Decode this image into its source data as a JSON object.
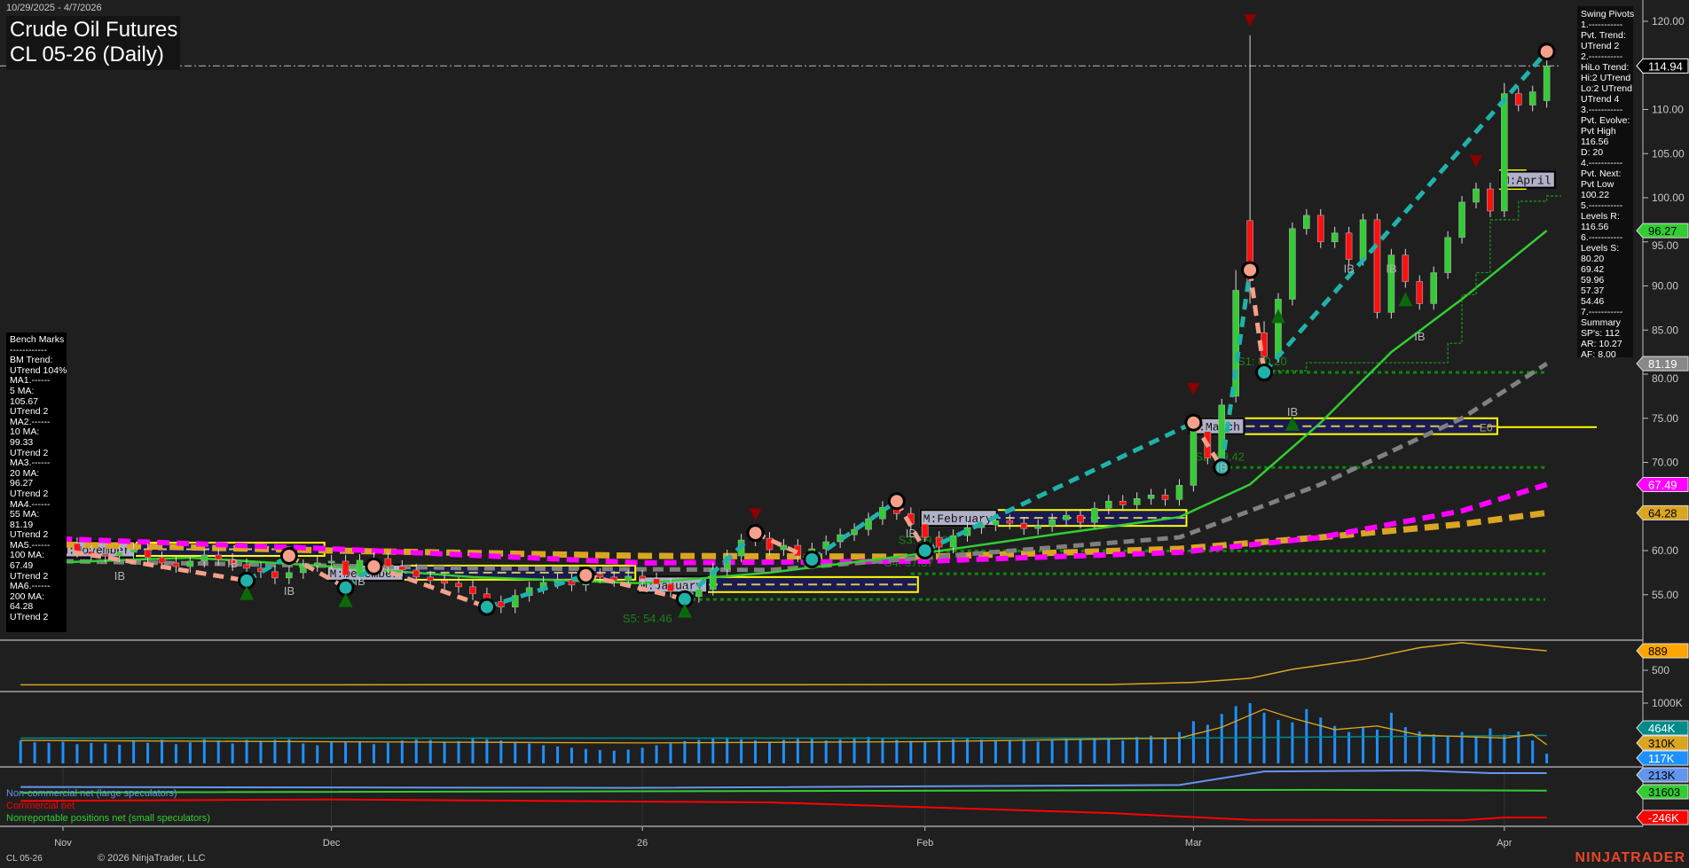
{
  "header": {
    "date_range": "10/29/2025 - 4/7/2026",
    "title_line1": "Crude Oil Futures",
    "title_line2": "CL 05-26 (Daily)"
  },
  "footer": {
    "instrument": "CL 05-26",
    "copyright": "© 2026 NinjaTrader, LLC",
    "logo": "NINJATRADER"
  },
  "swing_pivots": [
    "Swing Pivots",
    "1.-----------",
    "Pvt. Trend:",
    "UTrend 2",
    "2.-----------",
    "HiLo Trend:",
    "Hi:2 UTrend",
    "Lo:2 UTrend",
    "UTrend 4",
    "3.-----------",
    "Pvt. Evolve:",
    "Pvt High",
    "116.56",
    "D: 20",
    "4.-----------",
    "Pvt. Next:",
    "Pvt Low",
    "100.22",
    "5.-----------",
    "Levels R:",
    "116.56",
    "6.-----------",
    "Levels S:",
    "80.20",
    "69.42",
    "59.96",
    "57.37",
    "54.46",
    "7.-----------",
    "Summary",
    "SP's: 112",
    "AR: 10.27",
    "AF: 8.00"
  ],
  "bench_marks": [
    "Bench Marks",
    "------------",
    "BM Trend:",
    "UTrend 104%",
    "MA1.------",
    "5 MA:",
    "105.67",
    "UTrend 2",
    "MA2.------",
    "10 MA:",
    "99.33",
    "UTrend 2",
    "MA3.------",
    "20 MA:",
    "96.27",
    "UTrend 2",
    "MA4.------",
    "55 MA:",
    "81.19",
    "UTrend 2",
    "MA5.------",
    "100 MA:",
    "67.49",
    "UTrend 2",
    "MA6.------",
    "200 MA:",
    "64.28",
    "UTrend 2"
  ],
  "cot_legend": [
    {
      "label": "Non-commercial net (large speculators)",
      "color": "#6495ed"
    },
    {
      "label": "Commercial net",
      "color": "#ff0000"
    },
    {
      "label": "Nonreportable positions net (small speculators)",
      "color": "#32cd32"
    }
  ],
  "chart_data": {
    "type": "candlestick",
    "start_date": "2025-10-29",
    "end_date": "2026-04-07",
    "x_tick_labels": [
      [
        "2025-11-03",
        "Nov"
      ],
      [
        "2025-12-01",
        "Dec"
      ],
      [
        "2026-01-02",
        "26"
      ],
      [
        "2026-02-02",
        "Feb"
      ],
      [
        "2026-03-02",
        "Mar"
      ],
      [
        "2026-04-01",
        "Apr"
      ]
    ],
    "price_axis": {
      "ylim": [
        50,
        122
      ],
      "ticks": [
        55,
        60,
        70,
        75,
        80,
        85,
        90,
        95,
        100,
        105,
        110,
        120
      ]
    },
    "closes": [
      60.2,
      60.5,
      60.9,
      60.8,
      59.9,
      59.6,
      59.4,
      59.8,
      60.1,
      59.2,
      58.6,
      58.2,
      58.8,
      59.5,
      59.0,
      58.4,
      58.0,
      57.6,
      56.9,
      57.5,
      58.3,
      58.6,
      58.8,
      57.2,
      58.9,
      59.1,
      58.2,
      57.8,
      57.0,
      56.6,
      56.3,
      55.9,
      55.1,
      54.2,
      53.6,
      54.9,
      55.8,
      56.4,
      56.7,
      56.1,
      57.3,
      57.0,
      56.6,
      57.1,
      56.8,
      56.2,
      55.4,
      54.8,
      55.6,
      57.9,
      59.4,
      61.2,
      61.4,
      60.1,
      60.6,
      59.4,
      60.2,
      61.0,
      61.8,
      62.4,
      63.6,
      64.9,
      64.2,
      63.0,
      61.5,
      60.4,
      61.7,
      62.6,
      62.9,
      63.4,
      63.1,
      62.5,
      62.8,
      63.5,
      64.0,
      63.2,
      64.8,
      65.6,
      65.2,
      65.9,
      66.3,
      65.8,
      67.4,
      73.5,
      70.5,
      76.5,
      89.5,
      90.6,
      82.0,
      88.5,
      96.5,
      98.0,
      95.0,
      96.0,
      93.0,
      97.5,
      87.0,
      93.5,
      90.5,
      88.0,
      91.5,
      95.5,
      99.5,
      101.0,
      98.5,
      111.8,
      110.5,
      112.0,
      114.94
    ],
    "bar_overrides": {
      "2026-03-06": {
        "o": 97.4,
        "h": 118.4,
        "l": 88.0,
        "c": 90.6
      },
      "2026-03-09": {
        "o": 84.7,
        "h": 86.0,
        "l": 80.2,
        "c": 82.0
      },
      "2026-03-05": {
        "o": 77.5,
        "h": 91.8,
        "l": 76.8,
        "c": 89.5
      },
      "2026-04-01": {
        "o": 98.5,
        "h": 113.0,
        "l": 97.8,
        "c": 111.8
      },
      "2026-04-07": {
        "o": 111.0,
        "h": 116.56,
        "l": 110.2,
        "c": 114.94
      }
    },
    "last_price": {
      "value": 114.94,
      "label": "114.94"
    },
    "moving_averages": [
      {
        "name": "20 MA",
        "label": "96.27",
        "color": "#32cd32",
        "style": "solid",
        "points": [
          [
            "2025-10-29",
            58.5
          ],
          [
            "2025-11-14",
            59.2
          ],
          [
            "2025-12-01",
            58.2
          ],
          [
            "2025-12-15",
            57.0
          ],
          [
            "2026-01-02",
            56.3
          ],
          [
            "2026-01-15",
            57.5
          ],
          [
            "2026-01-30",
            59.5
          ],
          [
            "2026-02-13",
            61.8
          ],
          [
            "2026-02-27",
            63.8
          ],
          [
            "2026-03-06",
            67.5
          ],
          [
            "2026-03-13",
            74.5
          ],
          [
            "2026-03-20",
            82.5
          ],
          [
            "2026-03-27",
            88.5
          ],
          [
            "2026-04-07",
            96.27
          ]
        ]
      },
      {
        "name": "55 MA",
        "label": "81.19",
        "color": "#808080",
        "style": "dashed",
        "points": [
          [
            "2025-11-03",
            58.8
          ],
          [
            "2025-12-15",
            58.0
          ],
          [
            "2026-01-15",
            57.8
          ],
          [
            "2026-02-02",
            59.2
          ],
          [
            "2026-02-27",
            61.5
          ],
          [
            "2026-03-13",
            67.5
          ],
          [
            "2026-03-27",
            75.0
          ],
          [
            "2026-04-07",
            81.19
          ]
        ]
      },
      {
        "name": "100 MA",
        "label": "67.49",
        "color": "#ff00ff",
        "style": "dashed",
        "points": [
          [
            "2025-10-29",
            61.5
          ],
          [
            "2025-12-01",
            60.2
          ],
          [
            "2026-01-02",
            58.6
          ],
          [
            "2026-02-02",
            58.8
          ],
          [
            "2026-02-27",
            59.8
          ],
          [
            "2026-03-13",
            61.5
          ],
          [
            "2026-03-27",
            64.5
          ],
          [
            "2026-04-07",
            67.49
          ]
        ]
      },
      {
        "name": "200 MA",
        "label": "64.28",
        "color": "#daa520",
        "style": "dashed",
        "points": [
          [
            "2025-10-29",
            60.8
          ],
          [
            "2025-12-01",
            60.0
          ],
          [
            "2026-01-02",
            59.4
          ],
          [
            "2026-02-02",
            59.3
          ],
          [
            "2026-02-27",
            60.2
          ],
          [
            "2026-03-13",
            61.5
          ],
          [
            "2026-03-27",
            63.0
          ],
          [
            "2026-04-07",
            64.28
          ]
        ]
      }
    ],
    "swing_pivots": [
      [
        "2025-10-29",
        60.8,
        "H"
      ],
      [
        "2025-11-20",
        56.6,
        "L"
      ],
      [
        "2025-11-25",
        59.4,
        "H"
      ],
      [
        "2025-12-02",
        55.8,
        "L"
      ],
      [
        "2025-12-04",
        58.2,
        "H"
      ],
      [
        "2025-12-16",
        53.6,
        "L"
      ],
      [
        "2025-12-26",
        57.2,
        "H"
      ],
      [
        "2026-01-07",
        54.5,
        "L"
      ],
      [
        "2026-01-14",
        62.0,
        "H"
      ],
      [
        "2026-01-21",
        59.0,
        "L"
      ],
      [
        "2026-01-29",
        65.6,
        "H"
      ],
      [
        "2026-02-02",
        60.0,
        "L"
      ],
      [
        "2026-03-02",
        74.5,
        "H"
      ],
      [
        "2026-03-04",
        69.42,
        "L"
      ],
      [
        "2026-03-06",
        91.8,
        "H"
      ],
      [
        "2026-03-09",
        80.2,
        "L"
      ],
      [
        "2026-04-07",
        116.56,
        "H"
      ]
    ],
    "monthly_boxes": [
      {
        "label": "M:November",
        "start": "2025-11-03",
        "end": "2025-11-28",
        "low": 59.4,
        "high": 60.9,
        "tag": ""
      },
      {
        "label": "M:December",
        "start": "2025-12-01",
        "end": "2025-12-31",
        "low": 56.7,
        "high": 58.3,
        "tag": ""
      },
      {
        "label": "M:January",
        "start": "2026-01-02",
        "end": "2026-01-30",
        "low": 55.3,
        "high": 57.0,
        "tag": ""
      },
      {
        "label": "M:February",
        "start": "2026-02-02",
        "end": "2026-02-27",
        "low": 62.8,
        "high": 64.6,
        "tag": ""
      },
      {
        "label": "M:March",
        "start": "2026-03-02",
        "end": "2026-03-31",
        "low": 73.2,
        "high": 75.0,
        "tag": "E0"
      },
      {
        "label": "M:April",
        "start": "2026-04-01",
        "end": "2026-04-02",
        "low": 101.0,
        "high": 103.1,
        "tag": ""
      }
    ],
    "support_levels": [
      {
        "label": "S1: 80.20",
        "value": 80.2,
        "start": "2026-03-09"
      },
      {
        "label": "S2: 69.42",
        "value": 69.42,
        "start": "2026-03-04"
      },
      {
        "label": "S3: 59.96",
        "value": 59.96,
        "start": "2026-02-02"
      },
      {
        "label": "S4: 57.37",
        "value": 57.37,
        "start": "2026-01-30"
      },
      {
        "label": "S5: 54.46",
        "value": 54.46,
        "start": "2026-01-07"
      }
    ],
    "trailing_stop": [
      [
        "2026-03-09",
        80.4
      ],
      [
        "2026-03-12",
        81.3
      ],
      [
        "2026-03-26",
        83.5
      ],
      [
        "2026-03-27",
        89.0
      ],
      [
        "2026-03-30",
        91.5
      ],
      [
        "2026-03-31",
        97.5
      ],
      [
        "2026-04-02",
        99.6
      ],
      [
        "2026-04-07",
        100.2
      ]
    ],
    "ib_labels": [
      [
        "2025-11-07",
        57.3
      ],
      [
        "2025-11-19",
        58.7
      ],
      [
        "2025-11-25",
        55.6
      ],
      [
        "2025-12-03",
        56.7
      ],
      [
        "2026-01-30",
        62.1
      ],
      [
        "2026-03-04",
        69.6
      ],
      [
        "2026-03-11",
        75.9
      ],
      [
        "2026-03-17",
        92.1
      ],
      [
        "2026-03-20",
        92.1
      ],
      [
        "2026-03-24",
        84.4
      ]
    ],
    "ib_text": "IB",
    "signal_arrows": [
      [
        "2026-03-06",
        120.0,
        "down"
      ],
      [
        "2026-03-02",
        78.2,
        "down"
      ],
      [
        "2026-01-14",
        64.0,
        "down"
      ],
      [
        "2025-11-20",
        55.2,
        "up"
      ],
      [
        "2025-12-02",
        54.4,
        "up"
      ],
      [
        "2026-01-07",
        53.2,
        "up"
      ],
      [
        "2026-03-10",
        86.6,
        "up"
      ],
      [
        "2026-03-11",
        74.4,
        "up"
      ],
      [
        "2026-03-23",
        88.5,
        "up"
      ],
      [
        "2026-03-30",
        104.0,
        "down"
      ]
    ],
    "oscillator_panel": {
      "color": "#daa520",
      "label": "889",
      "tick": "500",
      "points": [
        [
          "2025-10-29",
          210
        ],
        [
          "2026-02-20",
          215
        ],
        [
          "2026-03-02",
          260
        ],
        [
          "2026-03-06",
          340
        ],
        [
          "2026-03-11",
          520
        ],
        [
          "2026-03-18",
          720
        ],
        [
          "2026-03-24",
          950
        ],
        [
          "2026-03-27",
          1050
        ],
        [
          "2026-04-01",
          960
        ],
        [
          "2026-04-07",
          889
        ]
      ]
    },
    "volume_panel": {
      "tick": "1000K",
      "volume_k": [
        380,
        350,
        340,
        360,
        320,
        340,
        330,
        310,
        380,
        340,
        390,
        320,
        350,
        400,
        380,
        330,
        390,
        370,
        390,
        400,
        330,
        300,
        350,
        360,
        370,
        320,
        340,
        380,
        400,
        390,
        350,
        370,
        420,
        400,
        380,
        360,
        330,
        300,
        280,
        260,
        240,
        220,
        210,
        230,
        260,
        300,
        330,
        370,
        390,
        410,
        430,
        400,
        380,
        360,
        390,
        420,
        410,
        380,
        400,
        420,
        440,
        410,
        390,
        370,
        360,
        380,
        400,
        420,
        390,
        370,
        380,
        400,
        360,
        380,
        410,
        390,
        420,
        400,
        380,
        440,
        460,
        420,
        520,
        700,
        640,
        820,
        950,
        1000,
        840,
        720,
        680,
        900,
        760,
        620,
        520,
        600,
        560,
        840,
        600,
        530,
        480,
        460,
        520,
        460,
        580,
        480,
        530,
        380,
        160
      ],
      "volume_label": "117K",
      "volume_color": "#1e90ff",
      "avg": {
        "label": "310K",
        "color": "#daa520",
        "points": [
          [
            "2025-10-29",
            380
          ],
          [
            "2025-12-15",
            350
          ],
          [
            "2026-01-02",
            340
          ],
          [
            "2026-02-02",
            360
          ],
          [
            "2026-02-27",
            420
          ],
          [
            "2026-03-04",
            600
          ],
          [
            "2026-03-09",
            900
          ],
          [
            "2026-03-11",
            750
          ],
          [
            "2026-03-16",
            560
          ],
          [
            "2026-03-19",
            620
          ],
          [
            "2026-03-24",
            470
          ],
          [
            "2026-04-01",
            420
          ],
          [
            "2026-04-06",
            480
          ],
          [
            "2026-04-07",
            310
          ]
        ]
      },
      "open_interest": {
        "label": "464K",
        "color": "#008b8b",
        "points": [
          [
            "2025-10-29",
            420
          ],
          [
            "2026-02-27",
            420
          ],
          [
            "2026-04-07",
            464
          ]
        ]
      }
    },
    "cot_panel": {
      "series": [
        {
          "name": "Non-commercial net (large speculators)",
          "label": "213K",
          "color": "#6495ed",
          "points": [
            [
              "2025-10-29",
              70
            ],
            [
              "2025-12-31",
              60
            ],
            [
              "2026-02-27",
              90
            ],
            [
              "2026-03-09",
              230
            ],
            [
              "2026-03-24",
              240
            ],
            [
              "2026-03-31",
              213
            ],
            [
              "2026-04-07",
              213
            ]
          ]
        },
        {
          "name": "Commercial net",
          "label": "-246K",
          "color": "#ff0000",
          "points": [
            [
              "2025-10-29",
              -75
            ],
            [
              "2025-12-01",
              -60
            ],
            [
              "2026-01-15",
              -90
            ],
            [
              "2026-02-20",
              -200
            ],
            [
              "2026-03-06",
              -270
            ],
            [
              "2026-03-27",
              -275
            ],
            [
              "2026-04-01",
              -246
            ],
            [
              "2026-04-07",
              -246
            ]
          ]
        },
        {
          "name": "Nonreportable positions net (small speculators)",
          "label": "31603",
          "color": "#32cd32",
          "points": [
            [
              "2025-10-29",
              12
            ],
            [
              "2026-03-13",
              40
            ],
            [
              "2026-04-07",
              31.6
            ]
          ]
        }
      ]
    }
  }
}
